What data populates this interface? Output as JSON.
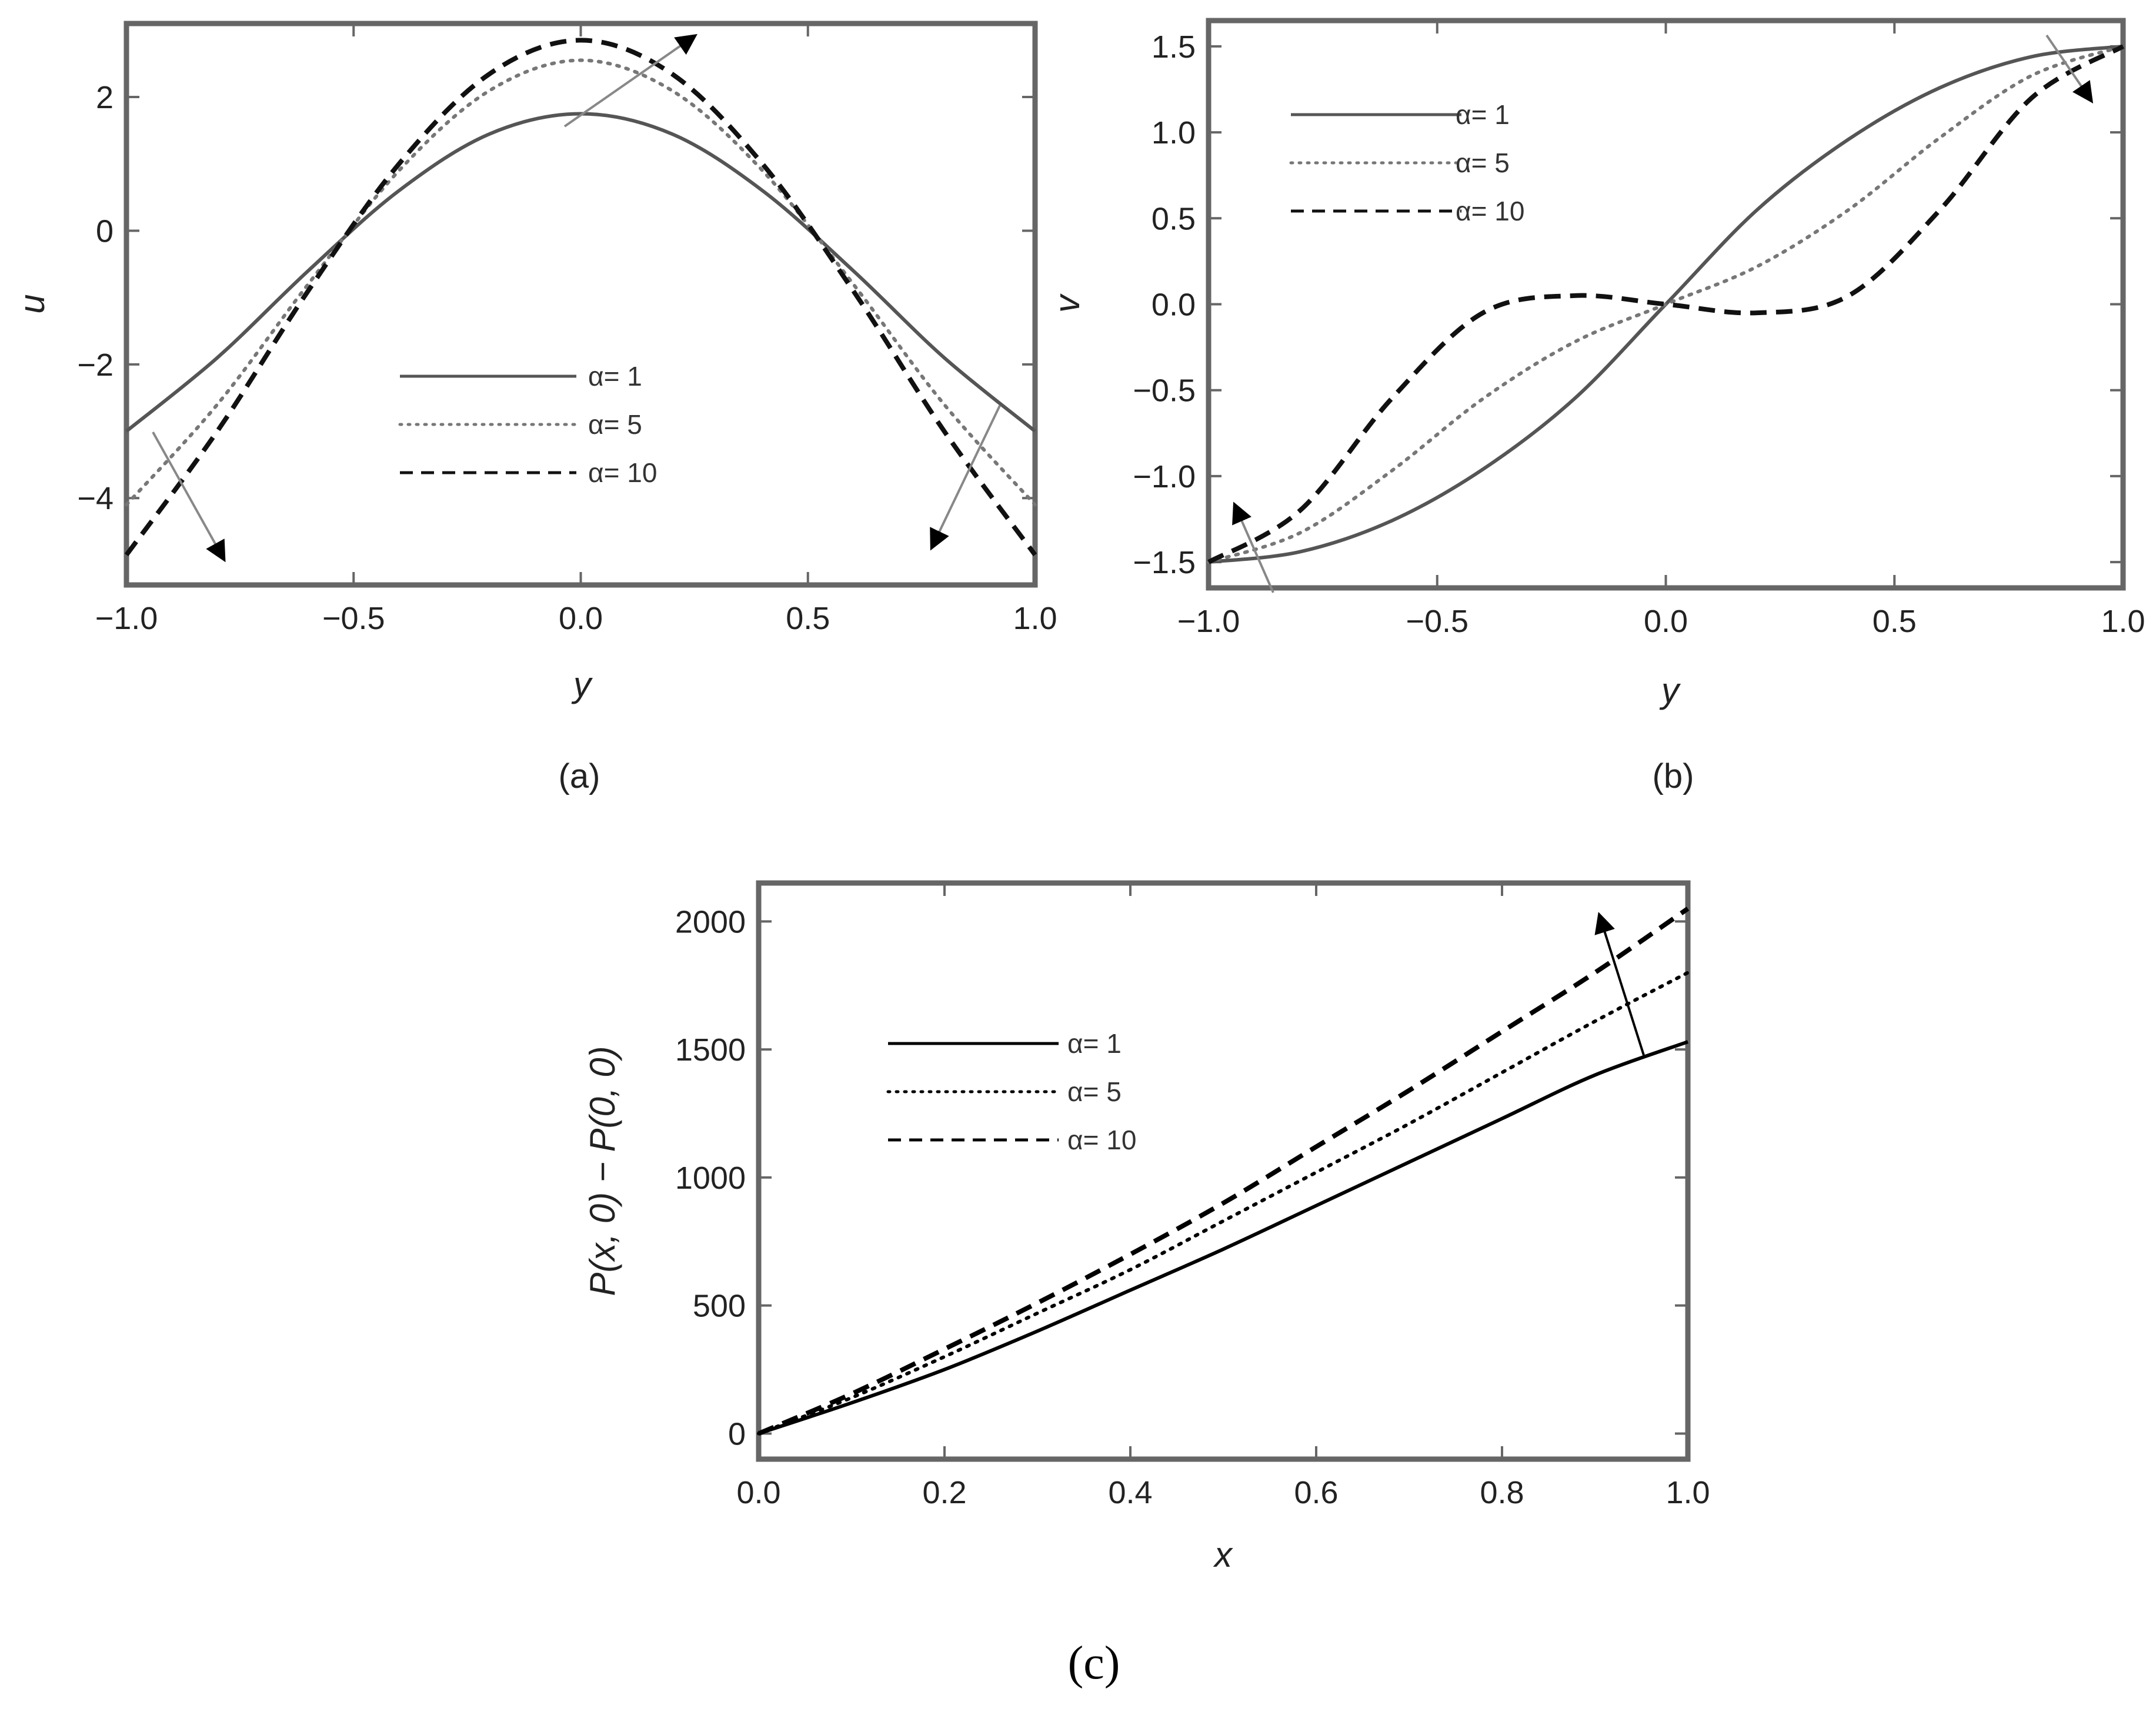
{
  "chart_data": [
    {
      "panel": "(a)",
      "type": "line",
      "xlabel": "y",
      "ylabel": "u",
      "xlim": [
        -1.0,
        1.0
      ],
      "ylim": [
        -5.3,
        3.1
      ],
      "xticks": [
        "-1.0",
        "-0.5",
        "0.0",
        "0.5",
        "1.0"
      ],
      "yticks": [
        "-4",
        "-2",
        "0",
        "2"
      ],
      "legend_position": "center-bottom",
      "series": [
        {
          "name": "α= 1",
          "style": "solid",
          "color": "#555555",
          "x": [
            -1.0,
            -0.8,
            -0.6,
            -0.4,
            -0.2,
            0.0,
            0.2,
            0.4,
            0.6,
            0.8,
            1.0
          ],
          "y": [
            -3.0,
            -1.9,
            -0.6,
            0.6,
            1.45,
            1.75,
            1.45,
            0.6,
            -0.6,
            -1.9,
            -3.0
          ]
        },
        {
          "name": "α= 5",
          "style": "dotted",
          "color": "#777777",
          "x": [
            -1.0,
            -0.8,
            -0.6,
            -0.4,
            -0.2,
            0.0,
            0.2,
            0.4,
            0.6,
            0.8,
            1.0
          ],
          "y": [
            -4.1,
            -2.6,
            -0.8,
            0.9,
            2.1,
            2.55,
            2.1,
            0.9,
            -0.8,
            -2.6,
            -4.1
          ]
        },
        {
          "name": "α= 10",
          "style": "dashed",
          "color": "#111111",
          "x": [
            -1.0,
            -0.8,
            -0.6,
            -0.4,
            -0.2,
            0.0,
            0.2,
            0.4,
            0.6,
            0.8,
            1.0
          ],
          "y": [
            -4.85,
            -3.0,
            -0.9,
            1.0,
            2.35,
            2.85,
            2.35,
            1.0,
            -0.9,
            -3.0,
            -4.85
          ]
        }
      ]
    },
    {
      "panel": "(b)",
      "type": "line",
      "xlabel": "y",
      "ylabel": "v",
      "xlim": [
        -1.0,
        1.0
      ],
      "ylim": [
        -1.65,
        1.65
      ],
      "xticks": [
        "-1.0",
        "-0.5",
        "0.0",
        "0.5",
        "1.0"
      ],
      "yticks": [
        "-1.5",
        "-1.0",
        "-0.5",
        "0.0",
        "0.5",
        "1.0",
        "1.5"
      ],
      "legend_position": "top-left",
      "series": [
        {
          "name": "α= 1",
          "style": "solid",
          "color": "#555555",
          "x": [
            -1.0,
            -0.8,
            -0.6,
            -0.4,
            -0.2,
            0.0,
            0.2,
            0.4,
            0.6,
            0.8,
            1.0
          ],
          "y": [
            -1.5,
            -1.44,
            -1.26,
            -0.96,
            -0.55,
            0.0,
            0.55,
            0.96,
            1.26,
            1.44,
            1.5
          ]
        },
        {
          "name": "α= 5",
          "style": "dotted",
          "color": "#777777",
          "x": [
            -1.0,
            -0.8,
            -0.6,
            -0.4,
            -0.2,
            0.0,
            0.2,
            0.4,
            0.6,
            0.8,
            1.0
          ],
          "y": [
            -1.5,
            -1.33,
            -0.97,
            -0.55,
            -0.22,
            0.0,
            0.22,
            0.55,
            0.97,
            1.33,
            1.5
          ]
        },
        {
          "name": "α= 10",
          "style": "dashed",
          "color": "#111111",
          "x": [
            -1.0,
            -0.8,
            -0.6,
            -0.4,
            -0.2,
            0.0,
            0.2,
            0.4,
            0.6,
            0.8,
            1.0
          ],
          "y": [
            -1.5,
            -1.2,
            -0.55,
            -0.05,
            0.05,
            0.0,
            -0.05,
            0.05,
            0.55,
            1.2,
            1.5
          ]
        }
      ]
    },
    {
      "panel": "(c)",
      "type": "line",
      "xlabel": "x",
      "ylabel": "P(x, 0) − P(0, 0)",
      "xlim": [
        0.0,
        1.0
      ],
      "ylim": [
        -100,
        2150
      ],
      "xticks": [
        "0.0",
        "0.2",
        "0.4",
        "0.6",
        "0.8",
        "1.0"
      ],
      "yticks": [
        "0",
        "500",
        "1000",
        "1500",
        "2000"
      ],
      "legend_position": "top-left",
      "series": [
        {
          "name": "α= 1",
          "style": "solid",
          "color": "#000000",
          "x": [
            0.0,
            0.1,
            0.2,
            0.3,
            0.4,
            0.5,
            0.6,
            0.7,
            0.8,
            0.9,
            1.0
          ],
          "y": [
            0,
            120,
            250,
            400,
            560,
            720,
            890,
            1060,
            1230,
            1400,
            1530
          ]
        },
        {
          "name": "α= 5",
          "style": "dotted",
          "color": "#000000",
          "x": [
            0.0,
            0.1,
            0.2,
            0.3,
            0.4,
            0.5,
            0.6,
            0.7,
            0.8,
            0.9,
            1.0
          ],
          "y": [
            0,
            140,
            300,
            470,
            640,
            830,
            1020,
            1210,
            1410,
            1610,
            1800
          ]
        },
        {
          "name": "α= 10",
          "style": "dashed",
          "color": "#000000",
          "x": [
            0.0,
            0.1,
            0.2,
            0.3,
            0.4,
            0.5,
            0.6,
            0.7,
            0.8,
            0.9,
            1.0
          ],
          "y": [
            0,
            155,
            330,
            510,
            700,
            900,
            1120,
            1340,
            1570,
            1800,
            2050
          ]
        }
      ]
    }
  ]
}
